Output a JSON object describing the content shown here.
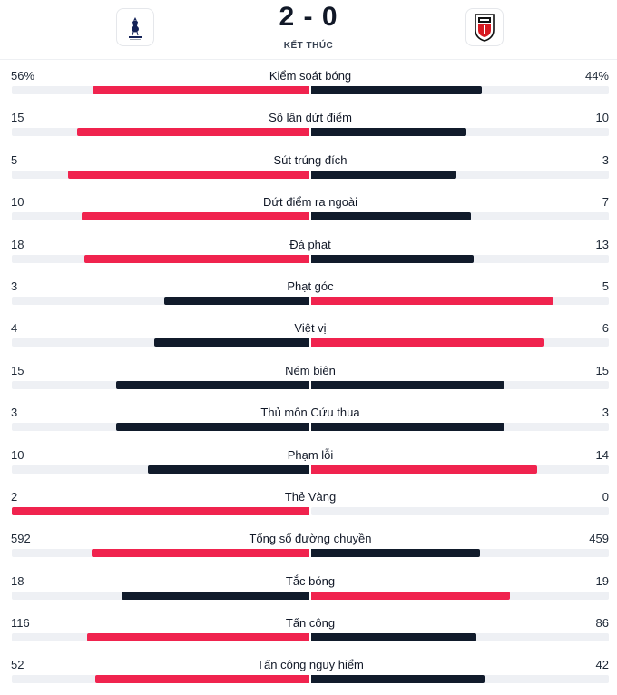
{
  "match": {
    "score": "2 - 0",
    "status": "KẾT THÚC",
    "home_crest_icon": "cockerel-crest-icon",
    "away_crest_icon": "fulham-crest-icon"
  },
  "colors": {
    "leader": "#f0234e",
    "other": "#111b2b",
    "track": "#eef0f4"
  },
  "stats": [
    {
      "label": "Kiểm soát bóng",
      "home": "56%",
      "away": "44%",
      "home_value": 56,
      "away_value": 44
    },
    {
      "label": "Số lần dứt điểm",
      "home": "15",
      "away": "10",
      "home_value": 15,
      "away_value": 10
    },
    {
      "label": "Sút trúng đích",
      "home": "5",
      "away": "3",
      "home_value": 5,
      "away_value": 3
    },
    {
      "label": "Dứt điểm ra ngoài",
      "home": "10",
      "away": "7",
      "home_value": 10,
      "away_value": 7
    },
    {
      "label": "Đá phạt",
      "home": "18",
      "away": "13",
      "home_value": 18,
      "away_value": 13
    },
    {
      "label": "Phạt góc",
      "home": "3",
      "away": "5",
      "home_value": 3,
      "away_value": 5
    },
    {
      "label": "Việt vị",
      "home": "4",
      "away": "6",
      "home_value": 4,
      "away_value": 6
    },
    {
      "label": "Ném biên",
      "home": "15",
      "away": "15",
      "home_value": 15,
      "away_value": 15
    },
    {
      "label": "Thủ môn Cứu thua",
      "home": "3",
      "away": "3",
      "home_value": 3,
      "away_value": 3
    },
    {
      "label": "Phạm lỗi",
      "home": "10",
      "away": "14",
      "home_value": 10,
      "away_value": 14
    },
    {
      "label": "Thẻ Vàng",
      "home": "2",
      "away": "0",
      "home_value": 2,
      "away_value": 0
    },
    {
      "label": "Tổng số đường chuyền",
      "home": "592",
      "away": "459",
      "home_value": 592,
      "away_value": 459
    },
    {
      "label": "Tắc bóng",
      "home": "18",
      "away": "19",
      "home_value": 18,
      "away_value": 19
    },
    {
      "label": "Tấn công",
      "home": "116",
      "away": "86",
      "home_value": 116,
      "away_value": 86
    },
    {
      "label": "Tấn công nguy hiểm",
      "home": "52",
      "away": "42",
      "home_value": 52,
      "away_value": 42
    }
  ]
}
